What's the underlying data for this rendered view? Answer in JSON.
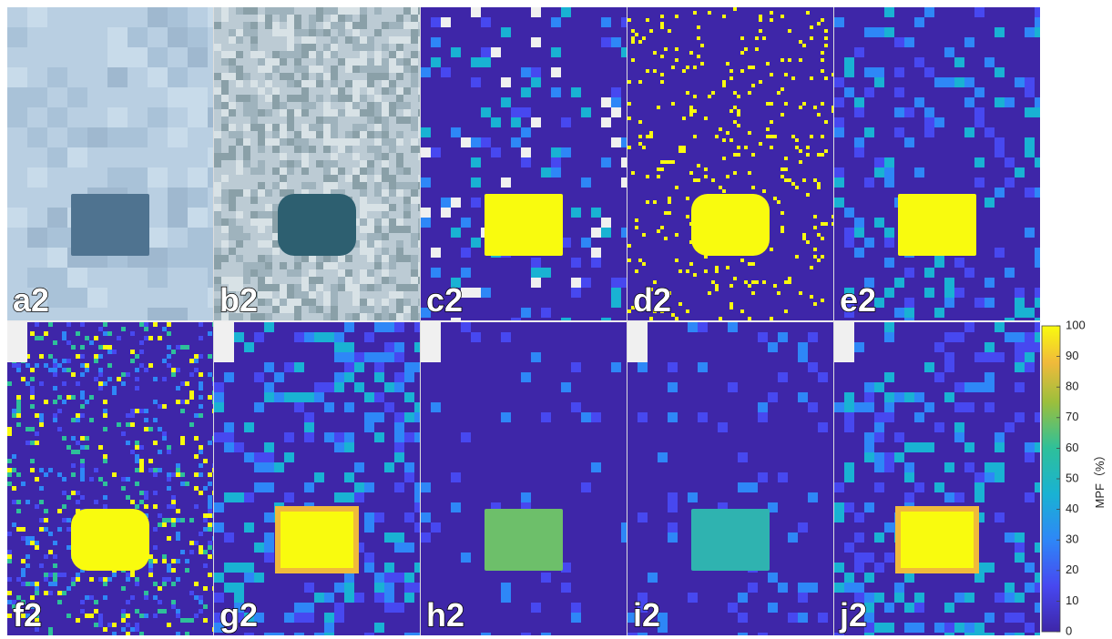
{
  "panels": [
    {
      "label": "a2"
    },
    {
      "label": "b2"
    },
    {
      "label": "c2"
    },
    {
      "label": "d2"
    },
    {
      "label": "e2"
    },
    {
      "label": "f2"
    },
    {
      "label": "g2"
    },
    {
      "label": "h2"
    },
    {
      "label": "i2"
    },
    {
      "label": "j2"
    }
  ],
  "colorbar": {
    "label": "MPF（%）",
    "range": [
      0,
      100
    ],
    "ticks": [
      0,
      10,
      20,
      30,
      40,
      50,
      60,
      70,
      80,
      90,
      100
    ]
  }
}
